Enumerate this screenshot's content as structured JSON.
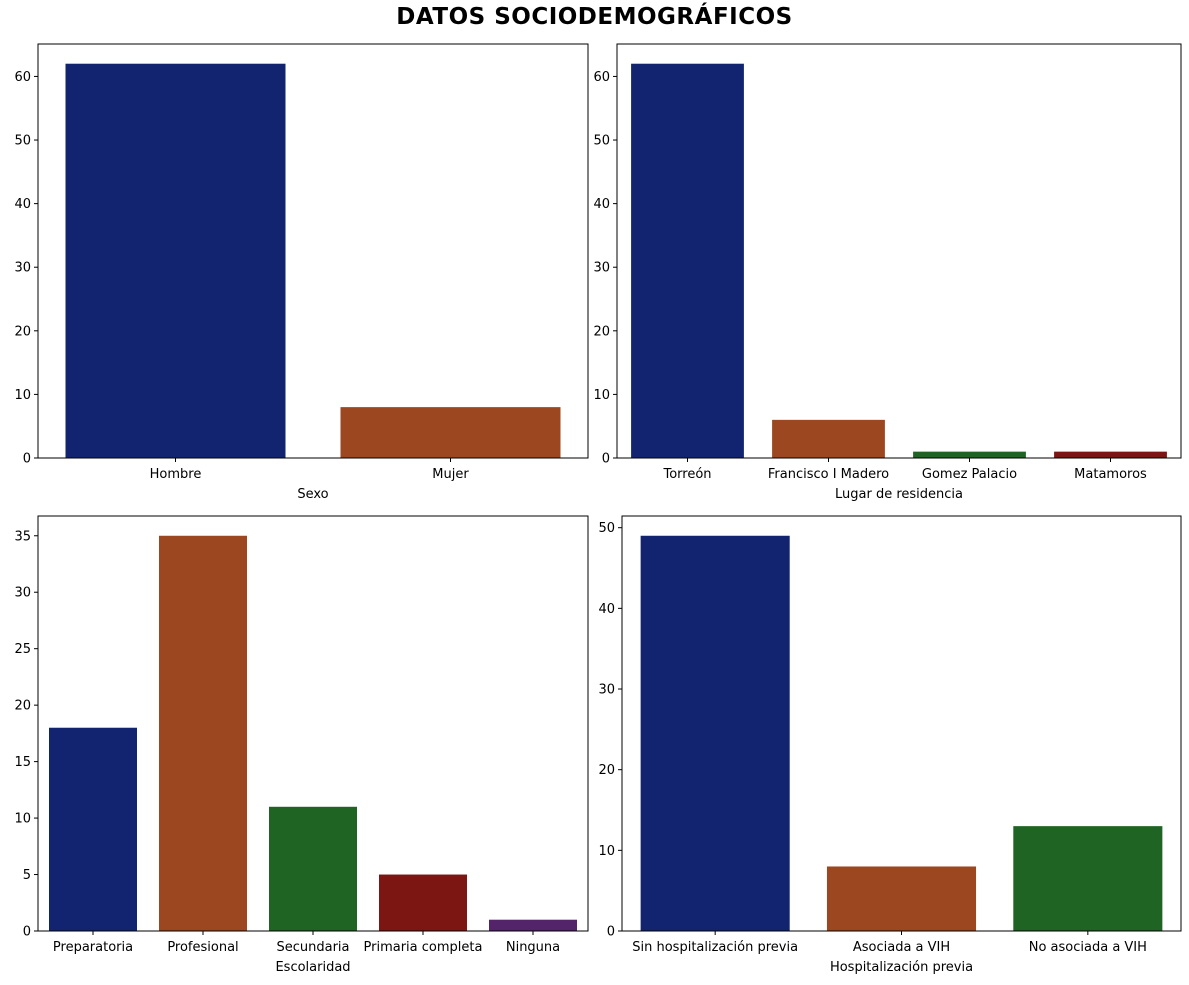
{
  "suptitle": "DATOS SOCIODEMOGRÁFICOS",
  "palette": [
    "#12246f",
    "#9c4720",
    "#206424",
    "#7c1612",
    "#54246b"
  ],
  "chart_data": [
    {
      "type": "bar",
      "categories": [
        "Hombre",
        "Mujer"
      ],
      "values": [
        62,
        8
      ],
      "xlabel": "Sexo",
      "ylabel": "",
      "ylim": [
        0,
        65.1
      ],
      "yticks": [
        0,
        10,
        20,
        30,
        40,
        50,
        60
      ]
    },
    {
      "type": "bar",
      "categories": [
        "Torreón",
        "Francisco I Madero",
        "Gomez Palacio",
        "Matamoros"
      ],
      "values": [
        62,
        6,
        1,
        1
      ],
      "xlabel": "Lugar de residencia",
      "ylabel": "",
      "ylim": [
        0,
        65.1
      ],
      "yticks": [
        0,
        10,
        20,
        30,
        40,
        50,
        60
      ]
    },
    {
      "type": "bar",
      "categories": [
        "Preparatoria",
        "Profesional",
        "Secundaria",
        "Primaria completa",
        "Ninguna"
      ],
      "values": [
        18,
        35,
        11,
        5,
        1
      ],
      "xlabel": "Escolaridad",
      "ylabel": "",
      "ylim": [
        0,
        36.75
      ],
      "yticks": [
        0,
        5,
        10,
        15,
        20,
        25,
        30,
        35
      ]
    },
    {
      "type": "bar",
      "categories": [
        "Sin hospitalización previa",
        "Asociada a VIH",
        "No asociada a VIH"
      ],
      "values": [
        49,
        8,
        13
      ],
      "xlabel": "Hospitalización previa",
      "ylabel": "",
      "ylim": [
        0,
        51.45
      ],
      "yticks": [
        0,
        10,
        20,
        30,
        40,
        50
      ]
    }
  ]
}
